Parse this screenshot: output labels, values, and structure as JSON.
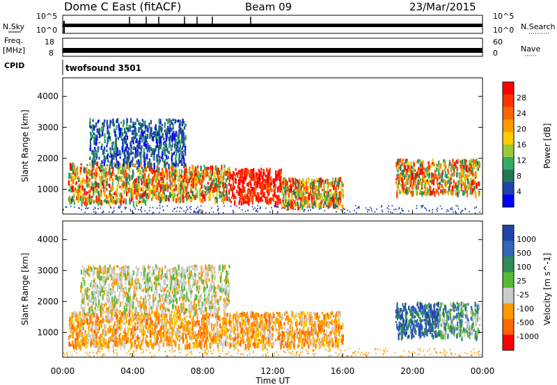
{
  "header": {
    "radar": "Dome C East (fitACF)",
    "beam": "Beam 09",
    "date": "23/Mar/2015"
  },
  "left_labels": {
    "nsky": "N.Sky",
    "freq_1": "Freq.",
    "freq_2": "[MHz]",
    "cpid": "CPID"
  },
  "right_labels": {
    "nsearch": "N.Search",
    "nave": "Nave"
  },
  "cpid_name": "twofsound 3501",
  "nsky_ticks": {
    "top": "10^5",
    "bottom": "10^0"
  },
  "freq_ticks": {
    "top": "18",
    "bottom": "8"
  },
  "nave_ticks": {
    "top": "60",
    "bottom": "0"
  },
  "chart_data": [
    {
      "type": "heatmap",
      "title": "",
      "ylabel": "Slant Range [km]",
      "xlabel": "",
      "ylim": [
        200,
        4600
      ],
      "yticks": [
        "1000",
        "2000",
        "3000",
        "4000"
      ],
      "colorbar": {
        "label": "Power [dB]",
        "ticks": [
          "28",
          "24",
          "20",
          "16",
          "12",
          "8",
          "4"
        ],
        "colors": [
          "#ff0000",
          "#ff3300",
          "#ff6600",
          "#ff9900",
          "#ffcc00",
          "#99cc33",
          "#33aa66",
          "#227755",
          "#2244aa",
          "#0000ff"
        ]
      },
      "regions": [
        {
          "t": [
            0.3,
            5.0
          ],
          "r": [
            600,
            1900
          ],
          "v": "high"
        },
        {
          "t": [
            5.0,
            9.5
          ],
          "r": [
            700,
            1800
          ],
          "v": "high"
        },
        {
          "t": [
            9.5,
            12.5
          ],
          "r": [
            600,
            1700
          ],
          "v": "peak"
        },
        {
          "t": [
            12.5,
            16.0
          ],
          "r": [
            500,
            1400
          ],
          "v": "high"
        },
        {
          "t": [
            1.5,
            7.0
          ],
          "r": [
            1800,
            3300
          ],
          "v": "low"
        },
        {
          "t": [
            19.0,
            23.8
          ],
          "r": [
            900,
            2000
          ],
          "v": "high"
        }
      ]
    },
    {
      "type": "heatmap",
      "title": "",
      "ylabel": "Slant Range [km]",
      "xlabel": "Time UT",
      "ylim": [
        200,
        4600
      ],
      "yticks": [
        "1000",
        "2000",
        "3000",
        "4000"
      ],
      "xticks": [
        "00:00",
        "04:00",
        "08:00",
        "12:00",
        "16:00",
        "20:00",
        "00:00"
      ],
      "colorbar": {
        "label": "Velocity [m s^-1]",
        "ticks": [
          "1000",
          "500",
          "100",
          "25",
          "-25",
          "-100",
          "-500",
          "-1000"
        ],
        "colors": [
          "#2244aa",
          "#3366bb",
          "#2f8a55",
          "#55bb33",
          "#cccccc",
          "#ff9900",
          "#ff6600",
          "#ff0000"
        ]
      },
      "regions": [
        {
          "t": [
            0.3,
            16.0
          ],
          "r": [
            600,
            1700
          ],
          "v": "-100"
        },
        {
          "t": [
            1.0,
            9.5
          ],
          "r": [
            1700,
            3200
          ],
          "v": "25"
        },
        {
          "t": [
            19.0,
            21.5
          ],
          "r": [
            900,
            2000
          ],
          "v": "1000"
        },
        {
          "t": [
            21.5,
            23.8
          ],
          "r": [
            900,
            2000
          ],
          "v": "100"
        }
      ]
    }
  ]
}
